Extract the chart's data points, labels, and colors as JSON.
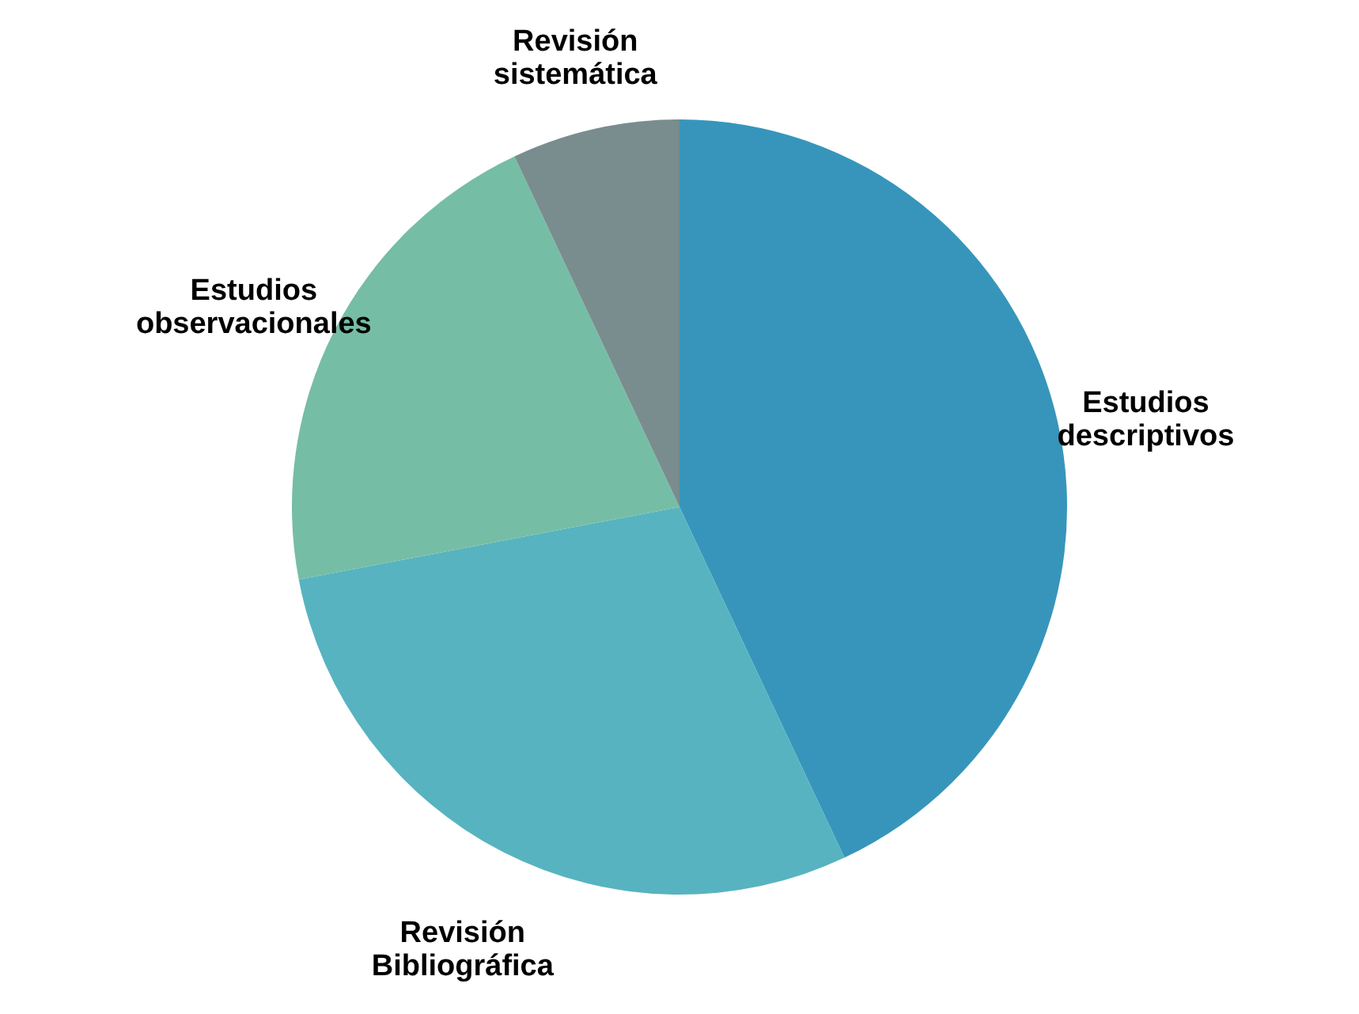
{
  "chart_data": {
    "type": "pie",
    "categories": [
      "Estudios descriptivos",
      "Revisión Bibliográfica",
      "Estudios observacionales",
      "Revisión sistemática"
    ],
    "values": [
      43,
      29,
      21,
      7
    ],
    "colors": [
      "#3795bb",
      "#57b3c0",
      "#76bda6",
      "#798c8e"
    ]
  }
}
